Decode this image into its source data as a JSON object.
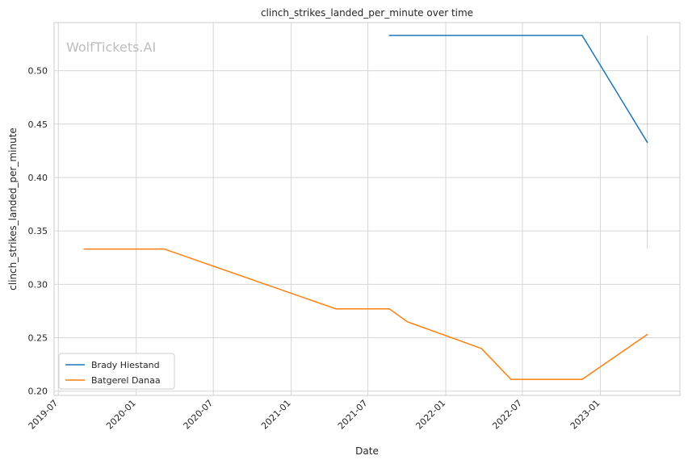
{
  "chart_data": {
    "type": "line",
    "title": "clinch_strikes_landed_per_minute over time",
    "xlabel": "Date",
    "ylabel": "clinch_strikes_landed_per_minute",
    "watermark": "WolfTickets.AI",
    "x_ticks": [
      "2019-07",
      "2020-01",
      "2020-07",
      "2021-01",
      "2021-07",
      "2022-01",
      "2022-07",
      "2023-01"
    ],
    "y_ticks": [
      "0.20",
      "0.25",
      "0.30",
      "0.35",
      "0.40",
      "0.45",
      "0.50"
    ],
    "xlim": [
      "2019-06-21",
      "2023-07-08"
    ],
    "ylim": [
      0.196,
      0.545
    ],
    "grid": true,
    "legend_position": "lower-left",
    "series": [
      {
        "name": "Brady Hiestand",
        "color": "#1f77b4",
        "points": [
          {
            "x": "2021-08-21",
            "y": 0.533
          },
          {
            "x": "2022-11-19",
            "y": 0.533
          },
          {
            "x": "2023-04-22",
            "y": 0.433
          }
        ],
        "band": {
          "x": "2023-04-22",
          "low": 0.333,
          "high": 0.533
        }
      },
      {
        "name": "Batgerel Danaa",
        "color": "#ff7f0e",
        "points": [
          {
            "x": "2019-08-31",
            "y": 0.333
          },
          {
            "x": "2020-03-07",
            "y": 0.333
          },
          {
            "x": "2021-04-17",
            "y": 0.277
          },
          {
            "x": "2021-08-21",
            "y": 0.277
          },
          {
            "x": "2021-10-02",
            "y": 0.265
          },
          {
            "x": "2022-03-26",
            "y": 0.24
          },
          {
            "x": "2022-06-04",
            "y": 0.211
          },
          {
            "x": "2022-11-19",
            "y": 0.211
          },
          {
            "x": "2023-04-22",
            "y": 0.253
          }
        ]
      }
    ]
  }
}
